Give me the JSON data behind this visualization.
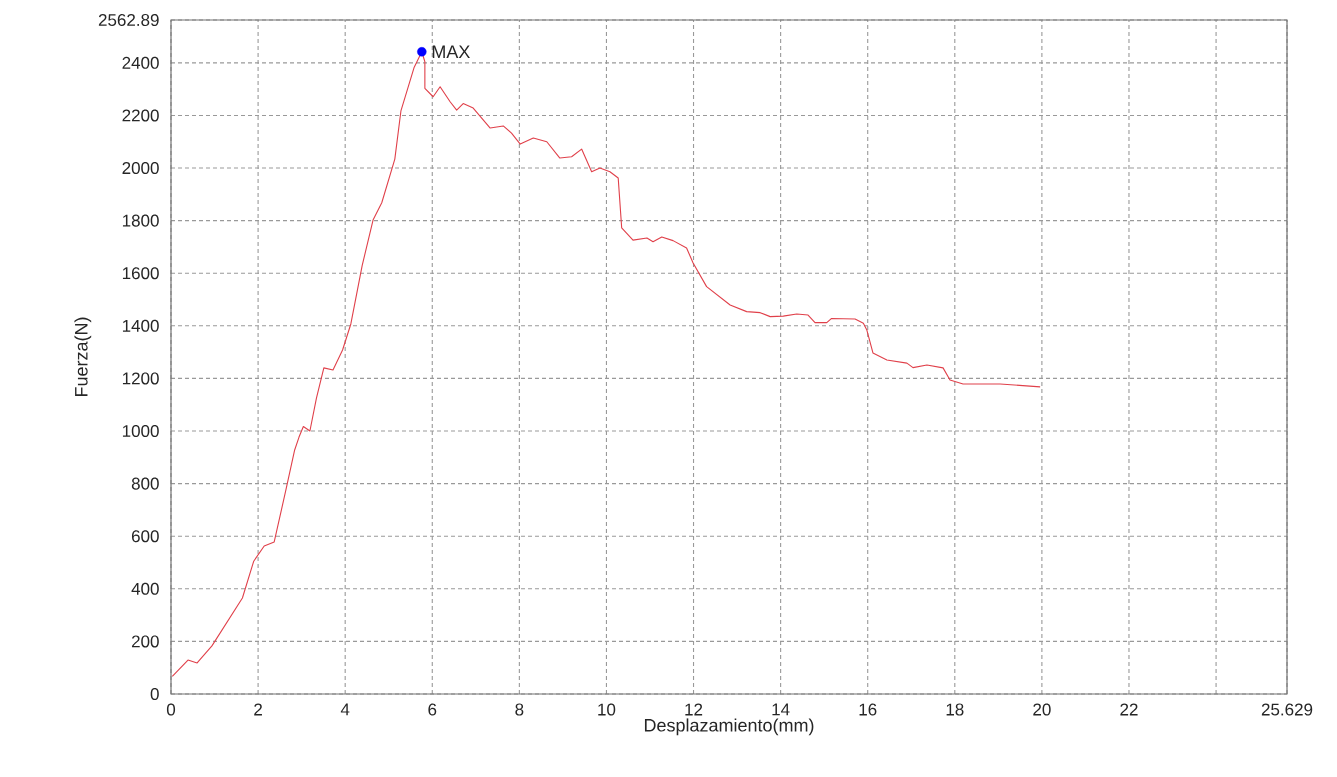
{
  "chart_data": {
    "type": "line",
    "xlabel": "Desplazamiento(mm)",
    "ylabel": "Fuerza(N)",
    "xlim": [
      0,
      25.629
    ],
    "ylim": [
      0,
      2562.89
    ],
    "xticks": [
      0,
      2,
      4,
      6,
      8,
      10,
      12,
      14,
      16,
      18,
      20,
      22,
      {
        "value": 24,
        "label": null
      },
      25.629
    ],
    "yticks": [
      0,
      200,
      400,
      600,
      800,
      1000,
      1200,
      1400,
      1600,
      1800,
      2000,
      2200,
      2400,
      2562.89
    ],
    "grid": true,
    "line_style": "solid",
    "series": [
      {
        "color": "#e0404a",
        "marker": "none",
        "x": [
          0.03,
          0.39,
          0.6,
          0.94,
          1.64,
          1.9,
          2.14,
          2.37,
          2.64,
          2.84,
          2.94,
          3.04,
          3.19,
          3.34,
          3.51,
          3.72,
          3.94,
          4.13,
          4.39,
          4.64,
          4.84,
          5.14,
          5.28,
          5.58,
          5.76,
          5.83,
          5.83,
          6.02,
          6.18,
          6.41,
          6.56,
          6.71,
          6.94,
          7.33,
          7.63,
          7.82,
          8.02,
          8.32,
          8.63,
          8.93,
          9.2,
          9.43,
          9.66,
          9.85,
          10.08,
          10.27,
          10.35,
          10.61,
          10.93,
          11.07,
          11.27,
          11.53,
          11.84,
          11.99,
          12.3,
          12.84,
          13.22,
          13.53,
          13.76,
          14.06,
          14.37,
          14.63,
          14.79,
          15.06,
          15.17,
          15.71,
          15.9,
          15.98,
          16.12,
          16.44,
          16.9,
          17.04,
          17.36,
          17.73,
          17.89,
          18.19,
          19.04,
          19.96
        ],
        "values": [
          67,
          129,
          118,
          183,
          365,
          505,
          563,
          578,
          777,
          928,
          977,
          1017,
          1000,
          1125,
          1240,
          1232,
          1308,
          1407,
          1629,
          1802,
          1868,
          2034,
          2217,
          2381,
          2442,
          2404,
          2303,
          2271,
          2309,
          2252,
          2220,
          2245,
          2228,
          2152,
          2160,
          2133,
          2091,
          2114,
          2100,
          2038,
          2043,
          2072,
          1986,
          2000,
          1986,
          1962,
          1772,
          1726,
          1734,
          1720,
          1738,
          1724,
          1696,
          1639,
          1549,
          1479,
          1454,
          1450,
          1435,
          1437,
          1445,
          1441,
          1412,
          1412,
          1428,
          1426,
          1410,
          1384,
          1297,
          1270,
          1258,
          1241,
          1251,
          1240,
          1194,
          1179,
          1179,
          1168
        ]
      },
      {
        "type": "scatter",
        "color": "#0000ff",
        "marker": "circle",
        "x": [
          5.76
        ],
        "values": [
          2442
        ]
      }
    ],
    "annotations": [
      {
        "text": "MAX",
        "x": 5.76,
        "y": 2442
      }
    ]
  }
}
